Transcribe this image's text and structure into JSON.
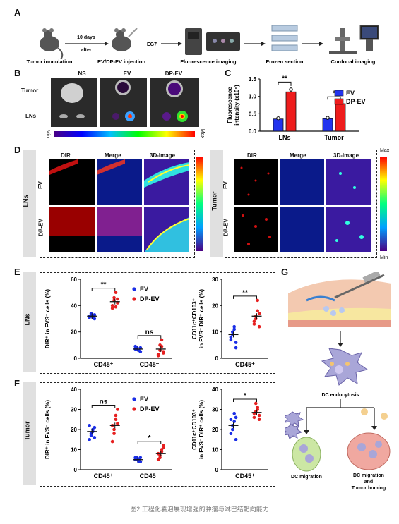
{
  "panel_labels": {
    "a": "A",
    "b": "B",
    "c": "C",
    "d": "D",
    "e": "E",
    "f": "F",
    "g": "G"
  },
  "workflow": {
    "step1": "Tumor inoculation",
    "arrow_top": "10 days",
    "arrow_bottom": "after",
    "eg7": "EG7",
    "step2": "EV/DP-EV injection",
    "step3": "Fluorescence imaging",
    "step4": "Frozen section",
    "step5": "Confocal imaging"
  },
  "panel_b": {
    "cols": [
      "NS",
      "EV",
      "DP-EV"
    ],
    "rows": [
      "Tumor",
      "LNs"
    ],
    "scale_min": "Min",
    "scale_max": "Max"
  },
  "panel_d": {
    "left_group": "LNs",
    "right_group": "Tumor",
    "cols": [
      "DIR",
      "Merge",
      "3D-Image"
    ],
    "rows": [
      "EV",
      "DP-EV"
    ],
    "scale_max": "Max",
    "scale_min": "Min"
  },
  "panel_e": {
    "side": "LNs"
  },
  "panel_f": {
    "side": "Tumor"
  },
  "panel_g": {
    "label1": "DC endocytosis",
    "label2": "DC migration",
    "label3a": "DC migration",
    "label3b": "and",
    "label3c": "Tumor homing"
  },
  "caption": "图2 工程化囊泡展现增强的肿瘤与淋巴结靶向能力",
  "colors": {
    "ev": "#1a2ee6",
    "dpev": "#e62020",
    "bar_ev": "#2233ee",
    "bar_dpev": "#ee1c1c"
  },
  "chart_data": [
    {
      "id": "C",
      "type": "bar",
      "categories": [
        "LNs",
        "Tumor"
      ],
      "series": [
        {
          "name": "EV",
          "values": [
            0.35,
            0.36
          ]
        },
        {
          "name": "DP-EV",
          "values": [
            1.13,
            0.79
          ]
        }
      ],
      "ylabel": "Fluorescence intensity (x10⁹)",
      "ylim": [
        0,
        1.5
      ],
      "yticks": [
        "0.0",
        "0.5",
        "1.0",
        "1.5"
      ],
      "significance": [
        "**",
        "*"
      ],
      "legend": "top-right"
    },
    {
      "id": "E-left",
      "type": "scatter",
      "categories": [
        "CD45⁺",
        "CD45⁻"
      ],
      "series": [
        {
          "name": "EV",
          "values": [
            [
              31,
              33,
              32,
              30,
              32,
              34,
              31,
              33
            ],
            [
              7,
              8,
              6,
              5,
              9,
              7,
              6,
              8
            ]
          ]
        },
        {
          "name": "DP-EV",
          "values": [
            [
              38,
              46,
              50,
              42,
              40,
              44,
              39,
              45
            ],
            [
              3,
              10,
              14,
              5,
              2,
              6,
              9,
              4
            ]
          ]
        }
      ],
      "means": {
        "EV": [
          32,
          7
        ],
        "DP-EV": [
          43,
          7
        ]
      },
      "ylabel": "DIR⁺ in FVS⁻ cells (%)",
      "ylim": [
        0,
        60
      ],
      "yticks": [
        "0",
        "20",
        "40",
        "60"
      ],
      "significance": [
        "**",
        "ns"
      ],
      "legend": "top-right"
    },
    {
      "id": "E-right",
      "type": "scatter",
      "categories": [
        "CD45⁺"
      ],
      "series": [
        {
          "name": "EV",
          "values": [
            [
              8,
              10,
              12,
              4,
              7,
              9,
              11,
              6
            ]
          ]
        },
        {
          "name": "DP-EV",
          "values": [
            [
              13,
              16,
              22,
              17,
              14,
              15,
              18,
              12
            ]
          ]
        }
      ],
      "means": {
        "EV": [
          9
        ],
        "DP-EV": [
          16
        ]
      },
      "ylabel": "CD11c⁺CD103⁺ in FVS⁻ DIR⁺ cells (%)",
      "ylim": [
        0,
        30
      ],
      "yticks": [
        "0",
        "10",
        "20",
        "30"
      ],
      "significance": [
        "**"
      ]
    },
    {
      "id": "F-left",
      "type": "scatter",
      "categories": [
        "CD45⁺",
        "CD45⁻"
      ],
      "series": [
        {
          "name": "EV",
          "values": [
            [
              15,
              17,
              19,
              21,
              22,
              18,
              20,
              16
            ],
            [
              5,
              6,
              5,
              4,
              6,
              5,
              4,
              6
            ]
          ]
        },
        {
          "name": "DP-EV",
          "values": [
            [
              14,
              20,
              25,
              30,
              22,
              18,
              27,
              23
            ],
            [
              5,
              7,
              9,
              11,
              8,
              6,
              10,
              12
            ]
          ]
        }
      ],
      "means": {
        "EV": [
          19,
          5
        ],
        "DP-EV": [
          22,
          8
        ]
      },
      "ylabel": "DIR⁺ in FVS⁻ cells (%)",
      "ylim": [
        0,
        40
      ],
      "yticks": [
        "0",
        "10",
        "20",
        "30",
        "40"
      ],
      "significance": [
        "ns",
        "*"
      ],
      "legend": "top-right"
    },
    {
      "id": "F-right",
      "type": "scatter",
      "categories": [
        "CD45⁺"
      ],
      "series": [
        {
          "name": "EV",
          "values": [
            [
              18,
              22,
              28,
              15,
              25,
              20,
              24,
              26
            ]
          ]
        },
        {
          "name": "DP-EV",
          "values": [
            [
              26,
              29,
              31,
              25,
              28,
              33,
              30,
              27
            ]
          ]
        }
      ],
      "means": {
        "EV": [
          22
        ],
        "DP-EV": [
          28.5
        ]
      },
      "ylabel": "CD11c⁺CD103⁺ in FVS⁻ DIR⁺ cells (%)",
      "ylim": [
        0,
        40
      ],
      "yticks": [
        "0",
        "10",
        "20",
        "30",
        "40"
      ],
      "significance": [
        "*"
      ]
    }
  ]
}
